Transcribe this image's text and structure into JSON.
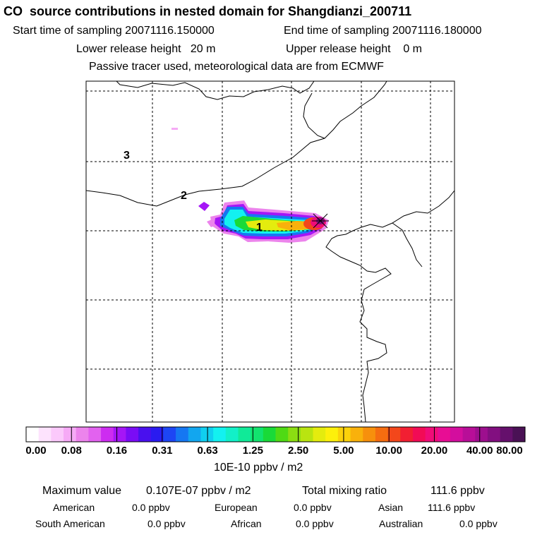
{
  "header": {
    "title": "CO  source contributions in nested domain for Shangdianzi_200711",
    "start_time": "Start time of sampling 20071116.150000",
    "end_time": "End time of sampling 20071116.180000",
    "lower_height": "Lower release height   20 m",
    "upper_height": "Upper release height    0 m",
    "tracer_note": "Passive tracer used, meteorological data are from ECMWF"
  },
  "map": {
    "grid_labels": [
      "1",
      "2",
      "3"
    ],
    "station_marker": "star-icon"
  },
  "colorbar": {
    "colors": [
      "#ffffff",
      "#fde3fd",
      "#fbc9fb",
      "#f6aaf6",
      "#ec84ec",
      "#e262ef",
      "#cd2cf0",
      "#a516f6",
      "#7a0cf5",
      "#4910ee",
      "#2a1bf0",
      "#1d46f4",
      "#1577f2",
      "#12a6ef",
      "#10cff0",
      "#13f1f0",
      "#12f0c8",
      "#10ea98",
      "#12e36e",
      "#19da38",
      "#4fda14",
      "#8bdd12",
      "#b9e410",
      "#e4ec0e",
      "#fdf00b",
      "#fbd20b",
      "#f9b10b",
      "#f7900c",
      "#f56d10",
      "#f3471b",
      "#f21f32",
      "#f20b55",
      "#f00c78",
      "#e80d94",
      "#d30e9e",
      "#b80e98",
      "#9d0f8e",
      "#820f80",
      "#65106c",
      "#4a1155"
    ],
    "tick_labels": [
      "0.00",
      "0.08",
      "0.16",
      "0.31",
      "0.63",
      "1.25",
      "2.50",
      "5.00",
      "10.00",
      "20.00",
      "40.00",
      "80.00"
    ],
    "unit": "10E-10 ppbv / m2"
  },
  "stats": {
    "max_label": "Maximum value",
    "max_value": "0.107E-07 ppbv / m2",
    "total_label": "Total mixing ratio",
    "total_value": "111.6 ppbv",
    "regions": [
      {
        "name": "American",
        "value": "0.0 ppbv"
      },
      {
        "name": "European",
        "value": "0.0 ppbv"
      },
      {
        "name": "Asian",
        "value": "111.6 ppbv"
      },
      {
        "name": "South American",
        "value": "0.0 ppbv"
      },
      {
        "name": "African",
        "value": "0.0 ppbv"
      },
      {
        "name": "Australian",
        "value": "0.0 ppbv"
      }
    ]
  }
}
